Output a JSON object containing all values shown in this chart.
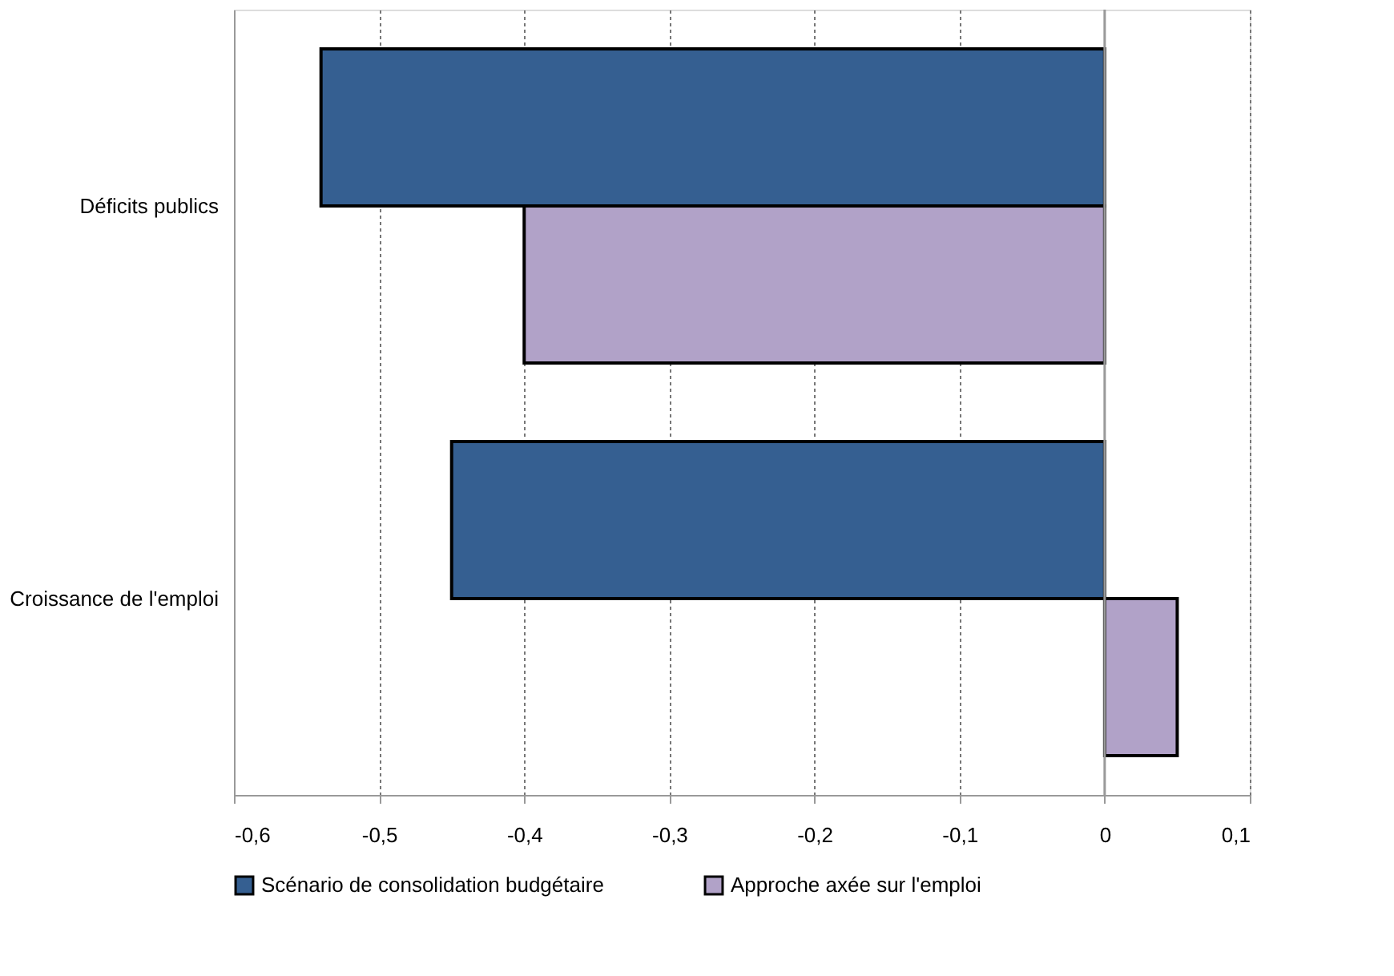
{
  "chart_data": {
    "type": "bar",
    "orientation": "horizontal",
    "categories": [
      "Déficits publics",
      "Croissance de l'emploi"
    ],
    "series": [
      {
        "name": "Scénario de consolidation budgétaire",
        "color": "#355f91",
        "values": [
          -0.54,
          -0.45
        ]
      },
      {
        "name": "Approche axée sur l'emploi",
        "color": "#b1a2c8",
        "values": [
          -0.4,
          0.05
        ]
      }
    ],
    "xlim": [
      -0.6,
      0.1
    ],
    "xticks": [
      {
        "value": -0.6,
        "label": "-0,6"
      },
      {
        "value": -0.5,
        "label": "-0,5"
      },
      {
        "value": -0.4,
        "label": "-0,4"
      },
      {
        "value": -0.3,
        "label": "-0,3"
      },
      {
        "value": -0.2,
        "label": "-0,2"
      },
      {
        "value": -0.1,
        "label": "-0,1"
      },
      {
        "value": 0,
        "label": "0"
      },
      {
        "value": 0.1,
        "label": "0,1"
      }
    ],
    "grid": "x",
    "legend": "bottom"
  }
}
